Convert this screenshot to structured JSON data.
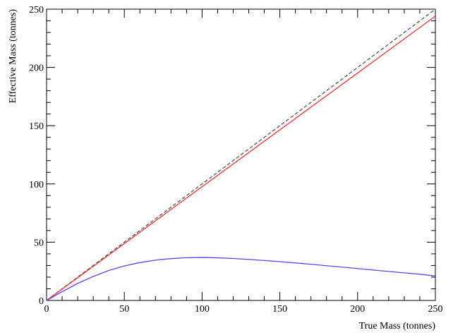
{
  "chart_data": {
    "type": "line",
    "title": "",
    "xlabel": "True Mass (tonnes)",
    "ylabel": "Effective Mass (tonnes)",
    "xlim": [
      0,
      250
    ],
    "ylim": [
      0,
      250
    ],
    "x_ticks": [
      0,
      50,
      100,
      150,
      200,
      250
    ],
    "y_ticks": [
      0,
      50,
      100,
      150,
      200,
      250
    ],
    "grid": false,
    "legend": "none",
    "series": [
      {
        "style": "dashed",
        "color": "#555555",
        "x": [
          0,
          250
        ],
        "y": [
          0,
          250
        ]
      },
      {
        "style": "solid",
        "color": "#ee3333",
        "x": [
          0,
          250
        ],
        "y": [
          0,
          244
        ]
      },
      {
        "style": "solid",
        "color": "#6a3cf0",
        "x": [
          0,
          10,
          20,
          30,
          40,
          50,
          60,
          70,
          80,
          90,
          100,
          110,
          120,
          130,
          140,
          150,
          160,
          170,
          180,
          190,
          200,
          210,
          220,
          230,
          240,
          250
        ],
        "y": [
          0,
          7.5,
          14.6,
          20.6,
          25.7,
          29.6,
          32.5,
          34.6,
          35.9,
          36.7,
          36.9,
          36.6,
          36.0,
          35.2,
          34.3,
          33.3,
          32.2,
          31.0,
          29.8,
          28.6,
          27.4,
          26.1,
          24.9,
          23.7,
          22.5,
          21.0
        ]
      }
    ]
  }
}
